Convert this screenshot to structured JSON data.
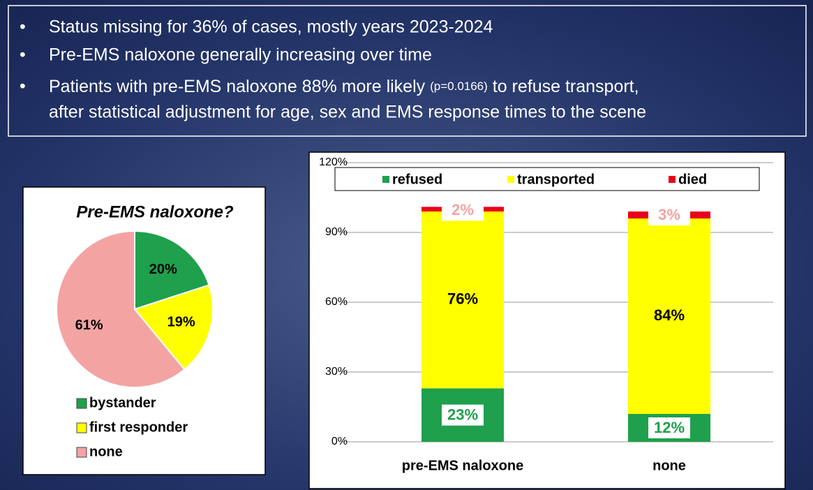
{
  "bullets": [
    {
      "text": "Status missing for 36% of cases, mostly years 2023-2024"
    },
    {
      "text": "Pre-EMS naloxone generally increasing over time"
    },
    {
      "text": "Patients with pre-EMS naloxone 88% more likely",
      "note": "(p=0.0166)",
      "text_after": "to refuse transport,",
      "text_line2": "after statistical adjustment for age, sex and EMS response times to the scene"
    }
  ],
  "chart_data": [
    {
      "type": "pie",
      "title": "Pre-EMS naloxone?",
      "categories": [
        "bystander",
        "first responder",
        "none"
      ],
      "values": [
        20,
        19,
        61
      ],
      "value_labels": [
        "20%",
        "19%",
        "61%"
      ],
      "colors": [
        "#1fa04c",
        "#ffff00",
        "#f4a3a3"
      ],
      "legend": "bottom"
    },
    {
      "type": "stacked_bar",
      "categories": [
        "pre-EMS naloxone",
        "none"
      ],
      "series": [
        {
          "name": "refused",
          "color": "#1fa04c",
          "values": [
            23,
            12
          ],
          "value_labels": [
            "23%",
            "12%"
          ]
        },
        {
          "name": "transported",
          "color": "#ffff00",
          "values": [
            76,
            84
          ],
          "value_labels": [
            "76%",
            "84%"
          ]
        },
        {
          "name": "died",
          "color": "#e8001c",
          "values": [
            2,
            3
          ],
          "value_labels": [
            "2%",
            "3%"
          ]
        }
      ],
      "ylim": [
        0,
        120
      ],
      "yticks": [
        {
          "value": 0,
          "label": "0%"
        },
        {
          "value": 30,
          "label": "30%"
        },
        {
          "value": 60,
          "label": "60%"
        },
        {
          "value": 90,
          "label": "90%"
        },
        {
          "value": 120,
          "label": "120%"
        }
      ],
      "grid": true,
      "legend": "top"
    }
  ]
}
